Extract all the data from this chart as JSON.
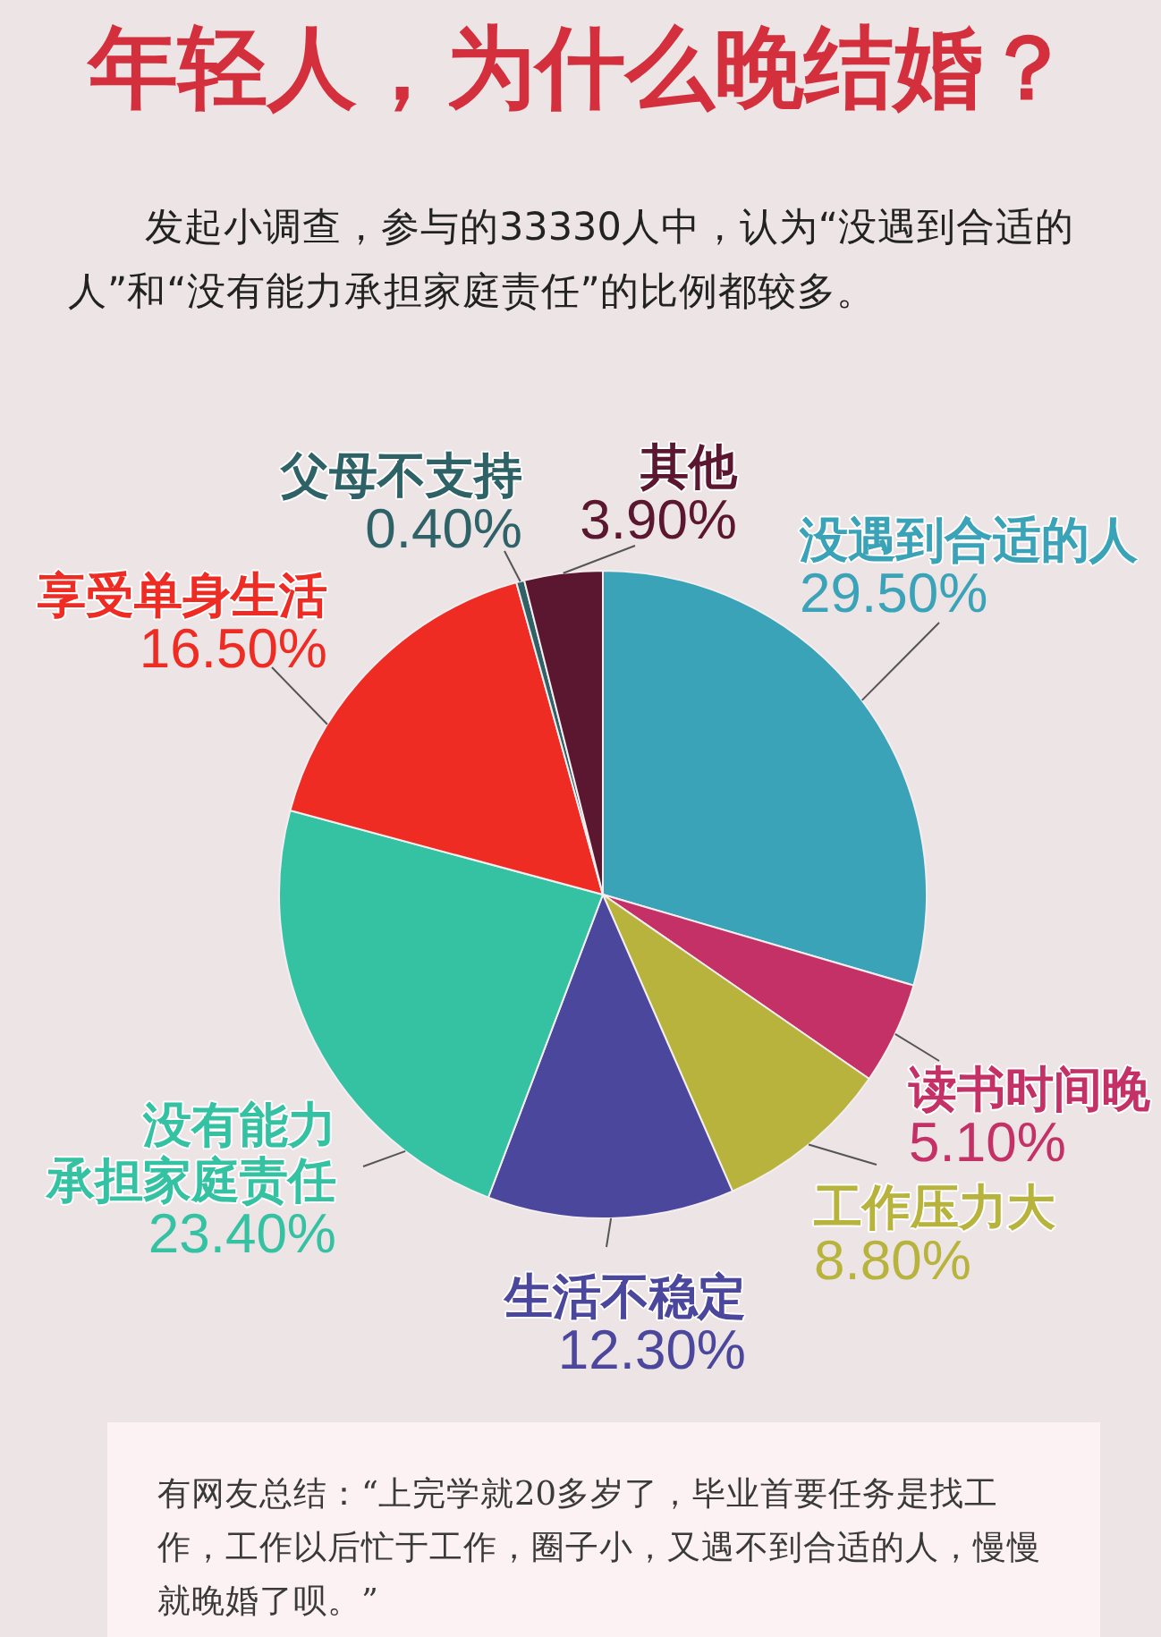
{
  "chart_data": {
    "type": "pie",
    "title": "年轻人，为什么晚结婚？",
    "subtitle": "发起小调查，参与的33330人中，认为“没遇到合适的人”和“没有能力承担家庭责任”的比例都较多。",
    "categories": [
      "没遇到合适的人",
      "读书时间晚",
      "工作压力大",
      "生活不稳定",
      "没有能力承担家庭责任",
      "享受单身生活",
      "父母不支持",
      "其他"
    ],
    "values": [
      29.5,
      5.1,
      8.8,
      12.3,
      23.4,
      16.5,
      0.4,
      3.9
    ],
    "value_labels": [
      "29.50%",
      "5.10%",
      "8.80%",
      "12.30%",
      "23.40%",
      "16.50%",
      "0.40%",
      "3.90%"
    ],
    "colors": [
      "#3aa3b8",
      "#c43167",
      "#b8b33c",
      "#4b479c",
      "#35c2a2",
      "#ee2c24",
      "#2f6266",
      "#5b1730"
    ],
    "annotations": [
      "有网友总结：“上完学就20多岁了，毕业首要任务是找工作，工作以后忙于工作，圈子小，又遇不到合适的人，慢慢就晚婚了呗。”"
    ]
  }
}
